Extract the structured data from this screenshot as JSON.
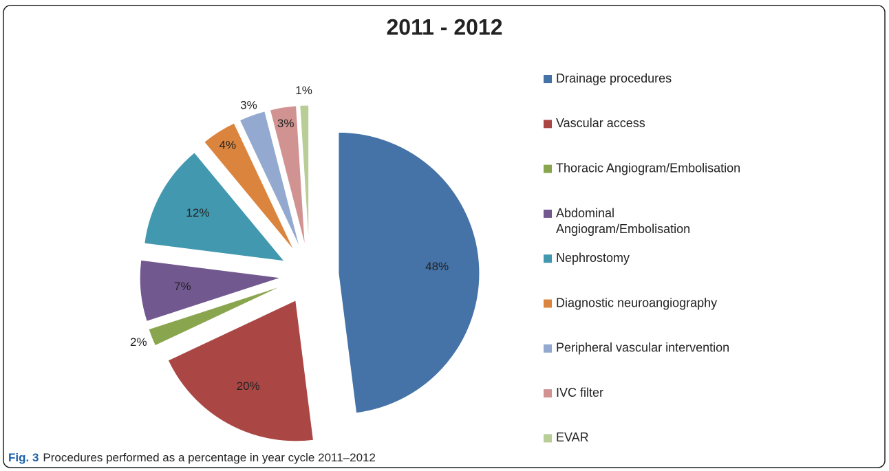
{
  "chart_data": {
    "type": "pie",
    "title": "2011 - 2012",
    "categories": [
      "Drainage procedures",
      "Vascular access",
      "Thoracic Angiogram/Embolisation",
      "Abdominal Angiogram/Embolisation",
      "Nephrostomy",
      "Diagnostic neuroangiography",
      "Peripheral vascular intervention",
      "IVC filter",
      "EVAR"
    ],
    "values": [
      48,
      20,
      2,
      7,
      12,
      4,
      3,
      3,
      1
    ],
    "value_labels": [
      "48%",
      "20%",
      "2%",
      "7%",
      "12%",
      "4%",
      "3%",
      "3%",
      "1%"
    ],
    "colors": [
      "#4572a7",
      "#aa4643",
      "#89a54e",
      "#71588f",
      "#4198af",
      "#db843d",
      "#93a9cf",
      "#d19392",
      "#b9cd96"
    ],
    "legend": "right",
    "caption_label": "Fig. 3",
    "caption": "Procedures performed as a percentage in year cycle 2011–2012"
  }
}
